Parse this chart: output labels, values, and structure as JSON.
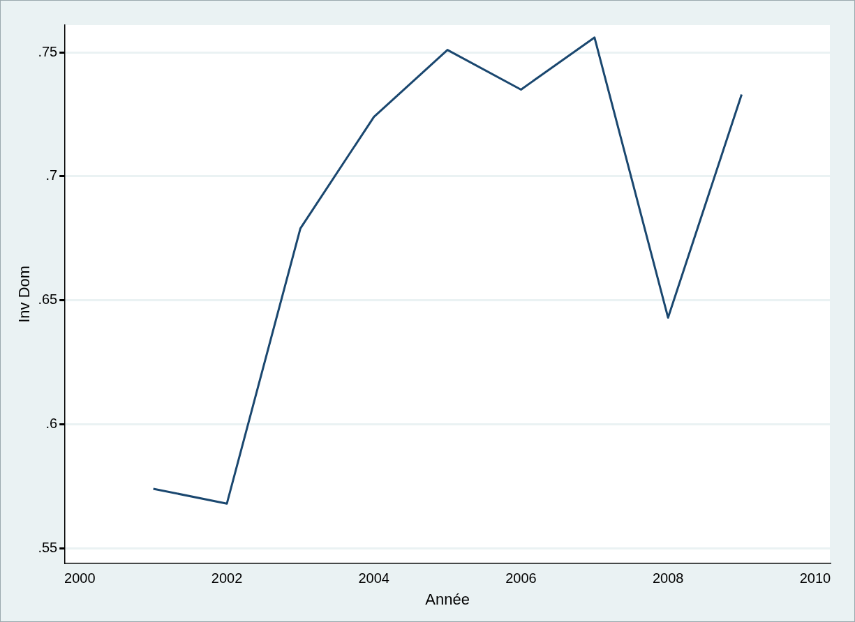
{
  "chart_data": {
    "type": "line",
    "xlabel": "Année",
    "ylabel": "Inv Dom",
    "x": [
      2001,
      2002,
      2003,
      2004,
      2005,
      2006,
      2007,
      2008,
      2009
    ],
    "series": [
      {
        "color": "#1a476f",
        "values": [
          0.574,
          0.568,
          0.679,
          0.724,
          0.751,
          0.735,
          0.756,
          0.643,
          0.733
        ]
      }
    ],
    "xlim": [
      1999.8,
      2010.2
    ],
    "xticks": [
      2000,
      2002,
      2004,
      2006,
      2008,
      2010
    ],
    "ylim": [
      0.544,
      0.761
    ],
    "yticks": [
      {
        "value": 0.55,
        "label": ".55"
      },
      {
        "value": 0.6,
        "label": ".6"
      },
      {
        "value": 0.65,
        "label": ".65"
      },
      {
        "value": 0.7,
        "label": ".7"
      },
      {
        "value": 0.75,
        "label": ".75"
      }
    ],
    "grid": "y",
    "legend": false,
    "marker": "none",
    "line_style": "solid"
  }
}
